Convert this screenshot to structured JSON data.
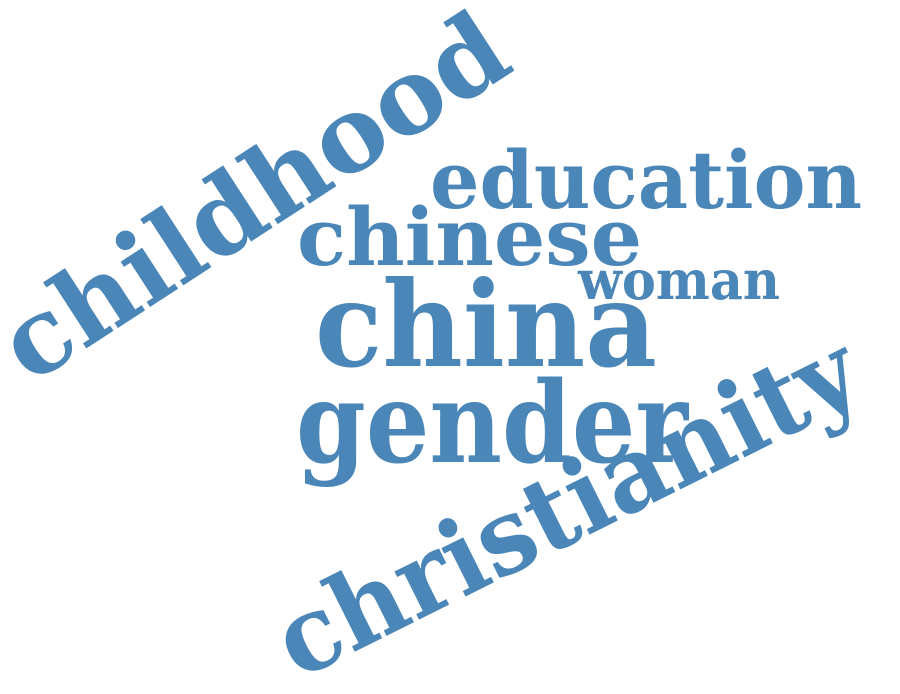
{
  "color": "#4a86b8",
  "words": [
    "childhood",
    "education",
    "chinese",
    "woman",
    "china",
    "gender",
    "christianity"
  ]
}
